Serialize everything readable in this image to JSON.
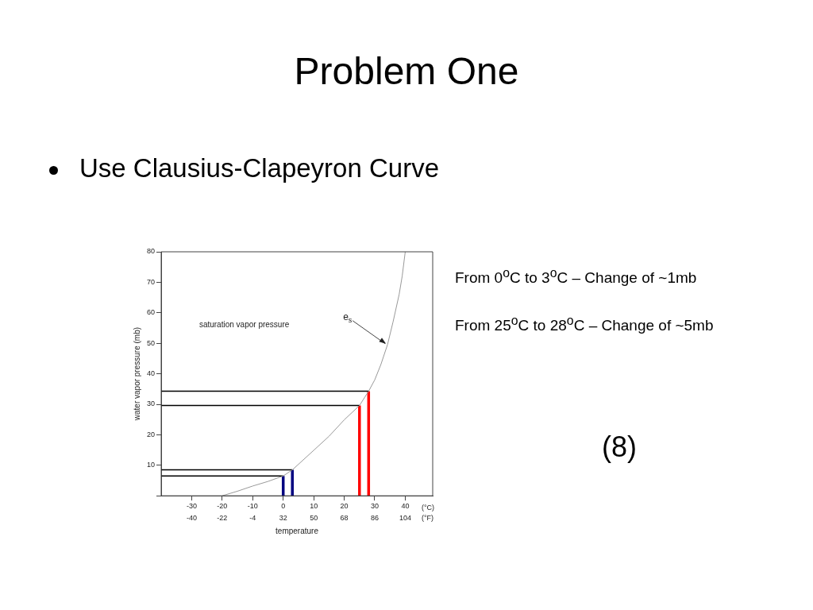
{
  "chart_data": {
    "type": "line",
    "title": "Problem One",
    "subtitle": "Use Clausius-Clapeyron Curve",
    "xlabel": "temperature",
    "ylabel": "water vapor pressure (mb)",
    "xlim": [
      -40,
      49
    ],
    "ylim": [
      0,
      80
    ],
    "xticks": [
      -30,
      -20,
      -10,
      0,
      10,
      20,
      30,
      40
    ],
    "yticks": [
      {
        "value": 0,
        "label": null
      },
      10,
      20,
      30,
      40,
      50,
      60,
      70,
      80
    ],
    "grid": false,
    "legend": false,
    "marker": "none",
    "line_style": "solid",
    "series": [
      {
        "color": "#999999",
        "x": [
          -20,
          -15,
          -10,
          -5,
          0,
          3,
          10,
          15,
          20,
          25,
          28,
          30,
          32,
          34.2,
          36,
          38,
          39,
          40
        ],
        "values": [
          0,
          1.5,
          3.2,
          4.7,
          6.5,
          8.5,
          14.9,
          19.5,
          24.9,
          29.6,
          34.3,
          38,
          43,
          49.6,
          57,
          66,
          72,
          80
        ]
      },
      {
        "color": "#000000",
        "x": [
          -40,
          0
        ],
        "values": [
          6.5,
          6.5
        ]
      },
      {
        "color": "#000000",
        "x": [
          -40,
          3
        ],
        "values": [
          8.5,
          8.5
        ]
      },
      {
        "color": "#000000",
        "x": [
          -40,
          25
        ],
        "values": [
          29.6,
          29.6
        ]
      },
      {
        "color": "#000000",
        "x": [
          -40,
          28
        ],
        "values": [
          34.3,
          34.3
        ]
      },
      {
        "color": "#000080",
        "x": [
          0,
          0
        ],
        "values": [
          0,
          6.5
        ]
      },
      {
        "color": "#000080",
        "x": [
          3,
          3
        ],
        "values": [
          0,
          8.5
        ]
      },
      {
        "color": "#ff0000",
        "x": [
          25,
          25
        ],
        "values": [
          0,
          29.6
        ]
      },
      {
        "color": "#ff0000",
        "x": [
          28,
          28
        ],
        "values": [
          0,
          34.3
        ]
      }
    ],
    "annotations": [
      "saturation vapor pressure",
      {
        "text": "e$_{s}$",
        "x": 34.2,
        "y": 49.6
      },
      "(°C)",
      "(°F)",
      "From 0$^{o}$C to 3$^{o}$C – Change of ~1mb",
      "From 25$^{o}$C to 28$^{o}$C – Change of ~5mb",
      "(8)",
      "-40",
      "-22",
      "-4",
      "32",
      "50",
      "68",
      "86",
      "104"
    ]
  }
}
